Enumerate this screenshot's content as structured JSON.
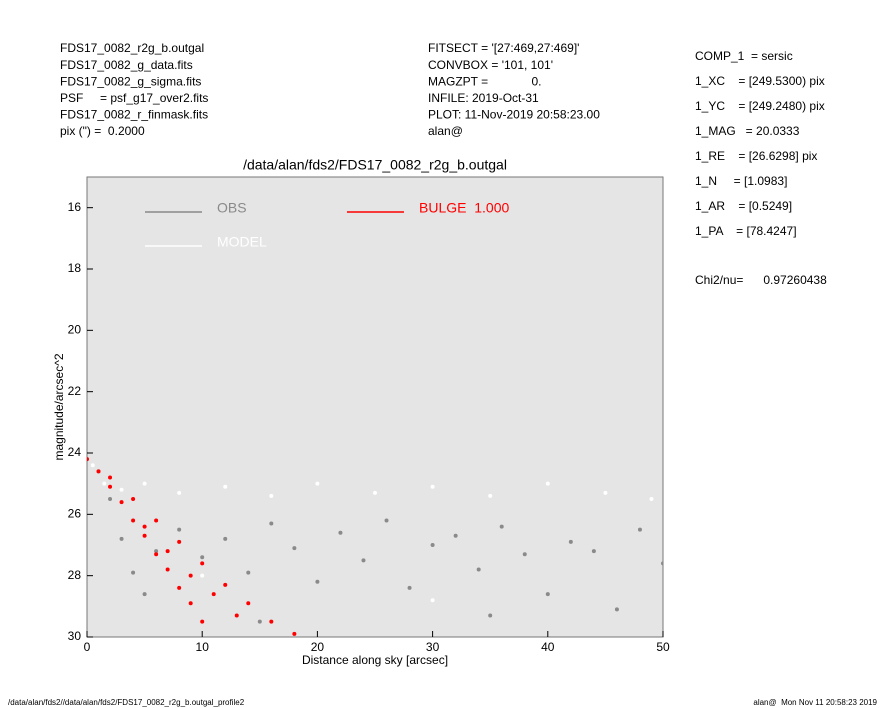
{
  "chart_data": {
    "type": "scatter",
    "title": "/data/alan/fds2/FDS17_0082_r2g_b.outgal",
    "x_label": "Distance along sky [arcsec]",
    "y_label": "magnitude/arcsec^2",
    "xlim": [
      0,
      50
    ],
    "xticks": [
      0,
      10,
      20,
      30,
      40,
      50
    ],
    "ylim": [
      30,
      15
    ],
    "yticks": [
      16,
      18,
      20,
      22,
      24,
      26,
      28,
      30
    ],
    "grid": false,
    "info_left": [
      "FDS17_0082_r2g_b.outgal",
      "FDS17_0082_g_data.fits",
      "FDS17_0082_g_sigma.fits",
      "PSF     = psf_g17_over2.fits",
      "FDS17_0082_r_finmask.fits",
      "pix (\") =  0.2000"
    ],
    "info_middle": [
      "FITSECT = '[27:469,27:469]'",
      "CONVBOX = '101, 101'",
      "MAGZPT =             0.",
      "INFILE: 2019-Oct-31",
      "PLOT: 11-Nov-2019 20:58:23.00",
      "alan@"
    ],
    "info_right": [
      "COMP_1  = sersic",
      "1_XC    = [249.5300) pix",
      "1_YC    = [249.2480) pix",
      "1_MAG   = 20.0333",
      "1_RE    = [26.6298] pix",
      "1_N     = [1.0983]",
      "1_AR    = [0.5249]",
      "1_PA    = [78.4247]"
    ],
    "chi2": "Chi2/nu=      0.97260438",
    "footer_left": "/data/alan/fds2//data/alan/fds2/FDS17_0082_r2g_b.outgal_profile2",
    "footer_right": "alan@  Mon Nov 11 20:58:23 2019",
    "series": [
      {
        "name": "OBS",
        "color": "#8a8a8a",
        "x": [
          1,
          2,
          3,
          4,
          5,
          6,
          8,
          10,
          12,
          14,
          16,
          18,
          20,
          22,
          24,
          26,
          28,
          30,
          32,
          34,
          36,
          38,
          40,
          42,
          44,
          46,
          48,
          50,
          15,
          35
        ],
        "values": [
          24.6,
          25.5,
          26.8,
          27.9,
          28.6,
          27.2,
          26.5,
          27.4,
          26.8,
          27.9,
          26.3,
          27.1,
          28.2,
          26.6,
          27.5,
          26.2,
          28.4,
          27.0,
          26.7,
          27.8,
          26.4,
          27.3,
          28.6,
          26.9,
          27.2,
          29.1,
          26.5,
          27.6,
          29.5,
          29.3
        ]
      },
      {
        "name": "MODEL",
        "color": "#ffffff",
        "x": [
          0.5,
          1.5,
          3,
          5,
          8,
          12,
          16,
          20,
          25,
          30,
          35,
          40,
          45,
          49,
          10,
          30
        ],
        "values": [
          24.4,
          25.0,
          25.2,
          25.0,
          25.3,
          25.1,
          25.4,
          25.0,
          25.3,
          25.1,
          25.4,
          25.0,
          25.3,
          25.5,
          28.0,
          28.8
        ]
      },
      {
        "name": "BULGE  1.000",
        "color": "#ff0000",
        "x": [
          0,
          1,
          2,
          3,
          4,
          5,
          6,
          7,
          8,
          9,
          10,
          2,
          4,
          6,
          8,
          10,
          12,
          14,
          16,
          18,
          5,
          7,
          9,
          11,
          13
        ],
        "values": [
          24.2,
          24.6,
          25.1,
          25.6,
          26.2,
          26.7,
          27.3,
          27.8,
          28.4,
          28.9,
          29.5,
          24.8,
          25.5,
          26.2,
          26.9,
          27.6,
          28.3,
          28.9,
          29.5,
          29.9,
          26.4,
          27.2,
          28.0,
          28.6,
          29.3
        ]
      }
    ]
  }
}
